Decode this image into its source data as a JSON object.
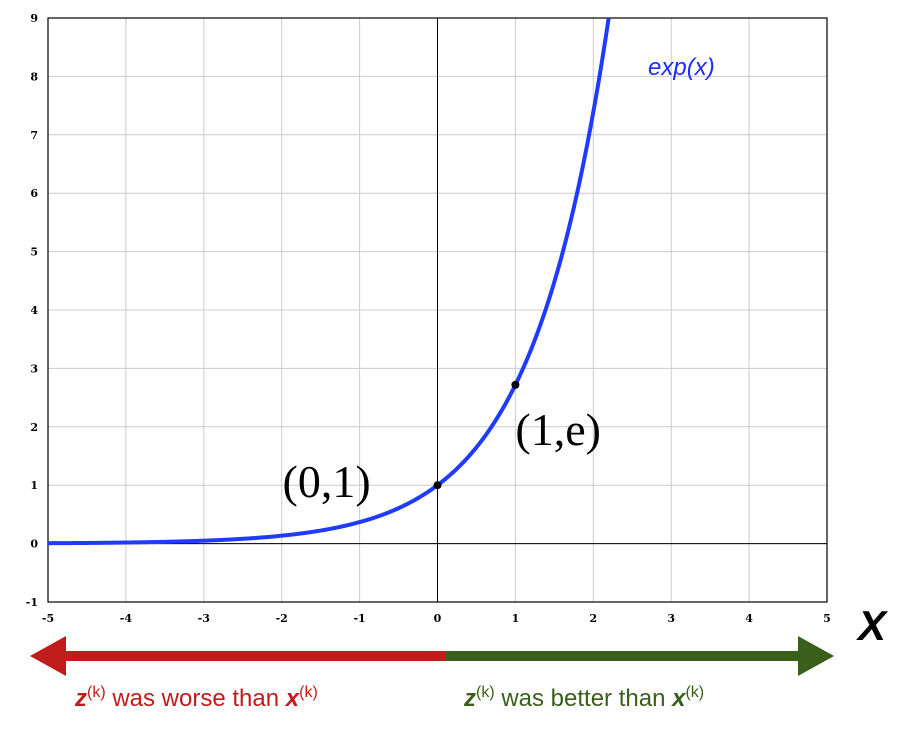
{
  "chart_data": {
    "type": "line",
    "function": "exp(x)",
    "series": [
      {
        "name": "exp(x)",
        "color": "#1f3bff"
      }
    ],
    "xlim": [
      -5,
      5
    ],
    "ylim": [
      -1,
      9
    ],
    "xticks": [
      "-5",
      "-4",
      "-3",
      "-2",
      "-1",
      "0",
      "1",
      "2",
      "3",
      "4",
      "5"
    ],
    "yticks": [
      "-1",
      "0",
      "1",
      "2",
      "3",
      "4",
      "5",
      "6",
      "7",
      "8",
      "9"
    ],
    "grid": true,
    "points": [
      {
        "x": 0,
        "y": 1,
        "label": "(0,1)"
      },
      {
        "x": 1,
        "y": 2.718,
        "label": "(1,e)"
      }
    ],
    "xlabel": "X",
    "curve_label": "exp(x)"
  },
  "annotations": {
    "left_arrow": {
      "color": "#c21b1b",
      "z": "z",
      "sup1": "(k)",
      "text": " was worse than ",
      "x": "x",
      "sup2": "(k)"
    },
    "right_arrow": {
      "color": "#3a5f1a",
      "z": "z",
      "sup1": "(k)",
      "text": " was better than ",
      "x": "x",
      "sup2": "(k)"
    }
  }
}
